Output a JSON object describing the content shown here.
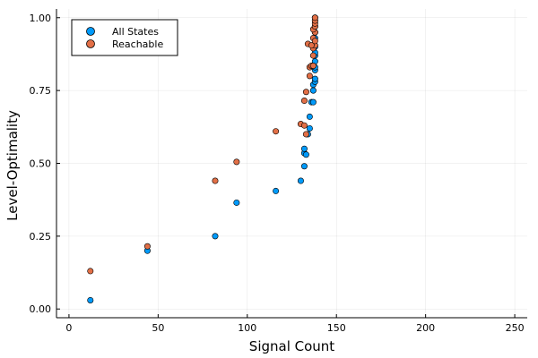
{
  "chart_data": {
    "type": "scatter",
    "xlabel": "Signal Count",
    "ylabel": "Level-Optimality",
    "xlim": [
      -7,
      257
    ],
    "ylim": [
      -0.03,
      1.03
    ],
    "x_ticks": [
      0,
      50,
      100,
      150,
      200,
      250
    ],
    "y_ticks": [
      0.0,
      0.25,
      0.5,
      0.75,
      1.0
    ],
    "x_tick_labels": [
      "0",
      "50",
      "100",
      "150",
      "200",
      "250"
    ],
    "y_tick_labels": [
      "0.00",
      "0.25",
      "0.50",
      "0.75",
      "1.00"
    ],
    "grid": true,
    "legend_position": "top-left",
    "series": [
      {
        "name": "All States",
        "color": "#009AFA",
        "points": [
          [
            12,
            0.03
          ],
          [
            44,
            0.2
          ],
          [
            82,
            0.25
          ],
          [
            94,
            0.365
          ],
          [
            116,
            0.405
          ],
          [
            130,
            0.44
          ],
          [
            132,
            0.49
          ],
          [
            132,
            0.535
          ],
          [
            133,
            0.53
          ],
          [
            132,
            0.55
          ],
          [
            134,
            0.6
          ],
          [
            135,
            0.62
          ],
          [
            135,
            0.66
          ],
          [
            136,
            0.71
          ],
          [
            137,
            0.71
          ],
          [
            137,
            0.75
          ],
          [
            137,
            0.77
          ],
          [
            138,
            0.78
          ],
          [
            138,
            0.79
          ],
          [
            138,
            0.82
          ],
          [
            138,
            0.83
          ],
          [
            138,
            0.85
          ],
          [
            138,
            0.87
          ],
          [
            138,
            0.88
          ],
          [
            138,
            0.9
          ],
          [
            138,
            0.93
          ],
          [
            138,
            0.95
          ],
          [
            138,
            0.97
          ],
          [
            138,
            0.99
          ],
          [
            138,
            1.0
          ]
        ]
      },
      {
        "name": "Reachable",
        "color": "#E26F46",
        "points": [
          [
            12,
            0.13
          ],
          [
            44,
            0.215
          ],
          [
            82,
            0.44
          ],
          [
            94,
            0.505
          ],
          [
            116,
            0.61
          ],
          [
            130,
            0.635
          ],
          [
            132,
            0.63
          ],
          [
            133,
            0.6
          ],
          [
            132,
            0.715
          ],
          [
            133,
            0.745
          ],
          [
            135,
            0.8
          ],
          [
            135,
            0.83
          ],
          [
            136,
            0.835
          ],
          [
            137,
            0.835
          ],
          [
            137,
            0.87
          ],
          [
            137,
            0.895
          ],
          [
            138,
            0.905
          ],
          [
            134,
            0.91
          ],
          [
            136,
            0.905
          ],
          [
            137,
            0.93
          ],
          [
            138,
            0.92
          ],
          [
            138,
            0.95
          ],
          [
            137,
            0.96
          ],
          [
            138,
            0.97
          ],
          [
            138,
            0.98
          ],
          [
            138,
            0.99
          ],
          [
            138,
            1.0
          ]
        ]
      }
    ]
  }
}
